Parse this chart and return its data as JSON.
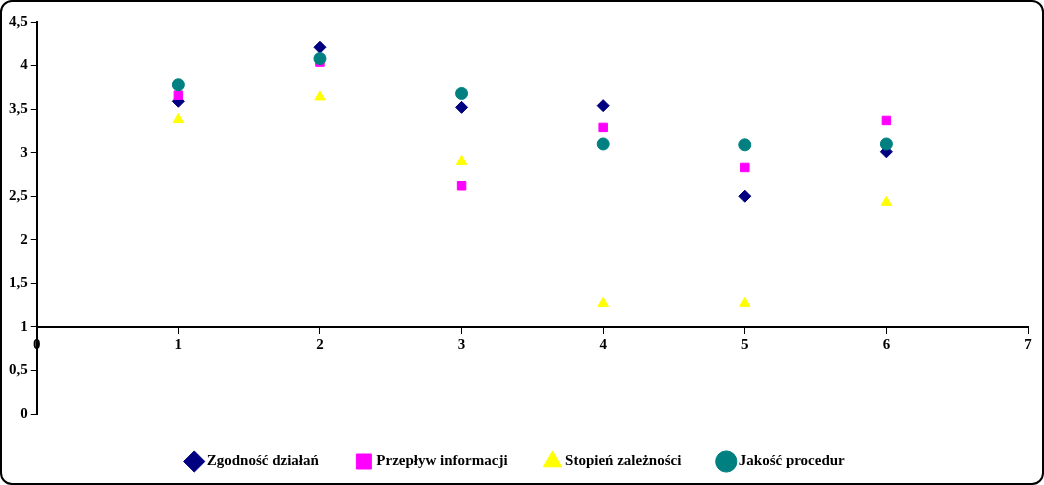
{
  "chart_data": {
    "type": "scatter",
    "xlim": [
      0,
      7
    ],
    "xticks": [
      0,
      1,
      2,
      3,
      4,
      5,
      6,
      7
    ],
    "ylim": [
      0,
      4.5
    ],
    "yticks": [
      {
        "value": 0,
        "label": "0"
      },
      {
        "value": 0.5,
        "label": "0,5"
      },
      {
        "value": 1,
        "label": "1"
      },
      {
        "value": 1.5,
        "label": "1,5"
      },
      {
        "value": 2,
        "label": "2"
      },
      {
        "value": 2.5,
        "label": "2,5"
      },
      {
        "value": 3,
        "label": "3"
      },
      {
        "value": 3.5,
        "label": "3,5"
      },
      {
        "value": 4,
        "label": "4"
      },
      {
        "value": 4.5,
        "label": "4,5"
      }
    ],
    "x": [
      1,
      2,
      3,
      4,
      5,
      6
    ],
    "grid": false,
    "legend": "bottom",
    "series": [
      {
        "name": "Zgodność działań",
        "color": "#000080",
        "marker": "diamond",
        "values": [
          3.59,
          4.21,
          3.52,
          3.54,
          2.5,
          3.01
        ]
      },
      {
        "name": "Przepływ informacji",
        "color": "#ff00ff",
        "marker": "square",
        "values": [
          3.66,
          4.04,
          2.62,
          3.29,
          2.83,
          3.37
        ]
      },
      {
        "name": "Stopień zależności",
        "color": "#ffff00",
        "marker": "triangle",
        "values": [
          3.38,
          3.64,
          2.9,
          1.27,
          1.27,
          2.43
        ]
      },
      {
        "name": "Jakość procedur",
        "color": "#008080",
        "marker": "circle",
        "values": [
          3.78,
          4.08,
          3.68,
          3.1,
          3.09,
          3.1
        ]
      }
    ]
  }
}
